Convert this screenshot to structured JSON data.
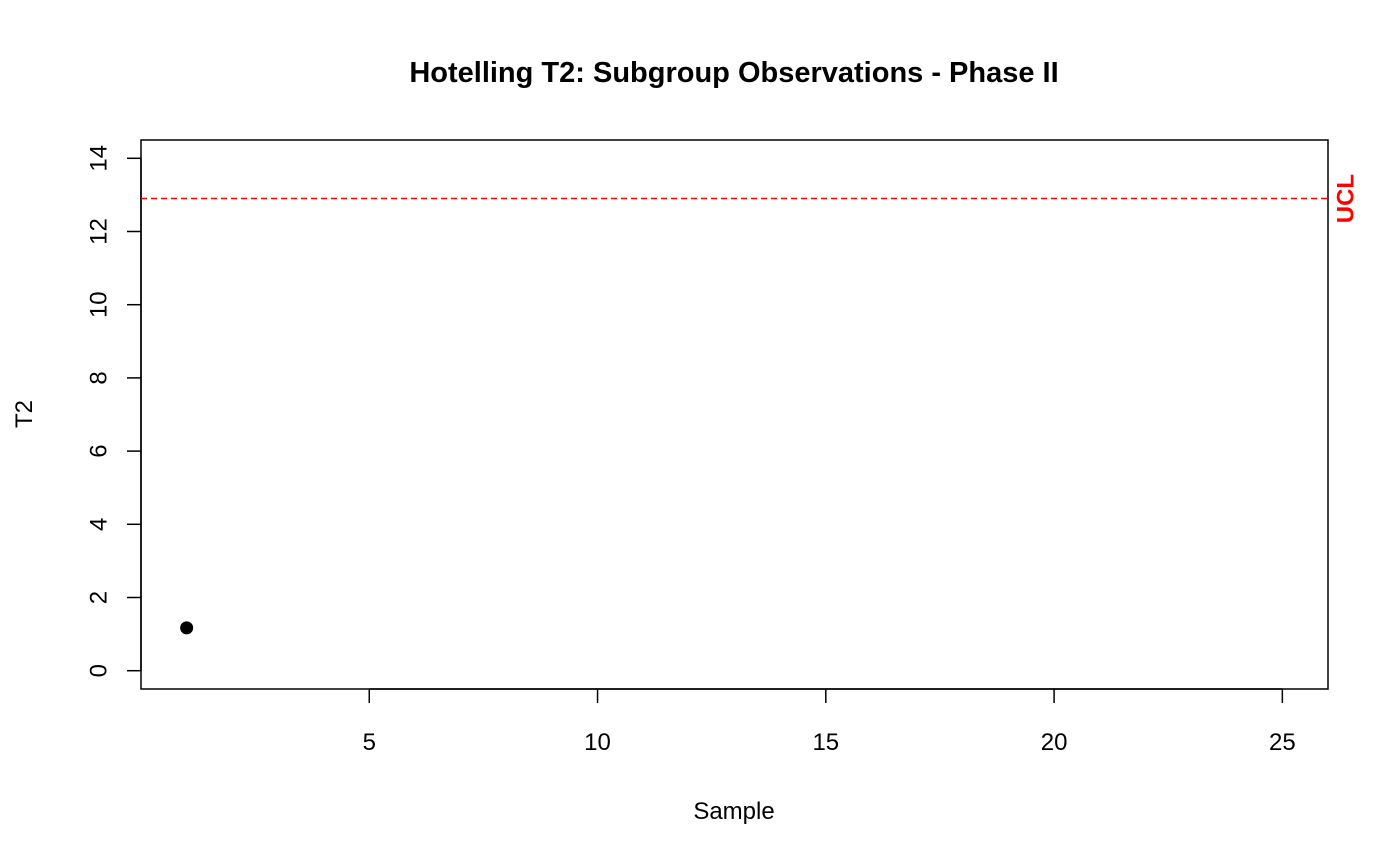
{
  "chart_data": {
    "type": "scatter",
    "title": "Hotelling T2: Subgroup Observations - Phase II",
    "xlabel": "Sample",
    "ylabel": "T2",
    "xlim": [
      0,
      26
    ],
    "ylim": [
      -0.5,
      14.5
    ],
    "x_ticks": [
      5,
      10,
      15,
      20,
      25
    ],
    "y_ticks": [
      0,
      2,
      4,
      6,
      8,
      10,
      12,
      14
    ],
    "series": [
      {
        "x": [
          1
        ],
        "y": [
          1.17
        ]
      }
    ],
    "control_limits": [
      {
        "label": "UCL",
        "value": 12.9,
        "color": "#ff0000",
        "style": "dashed"
      }
    ],
    "grid": false,
    "legend": "none"
  }
}
